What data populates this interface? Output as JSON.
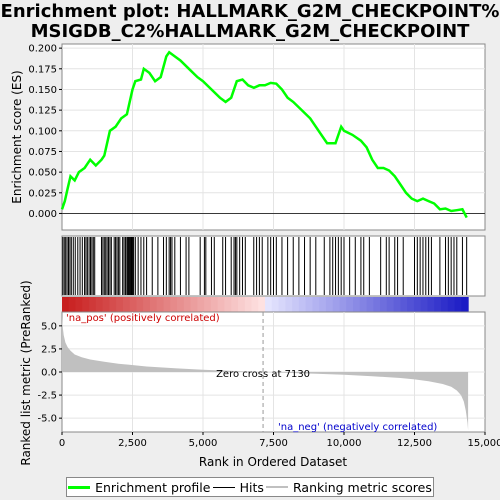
{
  "title_line1": "Enrichment plot: HALLMARK_G2M_CHECKPOINT%",
  "title_line2": "MSIGDB_C2%HALLMARK_G2M_CHECKPOINT",
  "chart_data": [
    {
      "type": "line",
      "panel": "enrichment",
      "ylabel": "Enrichment score (ES)",
      "ylim": [
        -0.02,
        0.205
      ],
      "yticks": [
        0.0,
        0.025,
        0.05,
        0.075,
        0.1,
        0.125,
        0.15,
        0.175,
        0.2
      ],
      "ytick_labels": [
        "0.000",
        "0.025",
        "0.050",
        "0.075",
        "0.100",
        "0.125",
        "0.150",
        "0.175",
        "0.200"
      ],
      "xlim": [
        0,
        15000
      ],
      "grid": true,
      "color": "#00ff00",
      "series": [
        {
          "name": "Enrichment profile",
          "x": [
            0,
            100,
            200,
            300,
            450,
            600,
            800,
            1000,
            1200,
            1400,
            1500,
            1700,
            1900,
            2100,
            2300,
            2500,
            2600,
            2800,
            2900,
            3100,
            3300,
            3500,
            3700,
            3800,
            4000,
            4200,
            4500,
            4800,
            5000,
            5300,
            5600,
            5800,
            6000,
            6200,
            6400,
            6600,
            6800,
            7000,
            7200,
            7400,
            7600,
            7800,
            8000,
            8200,
            8500,
            8800,
            9100,
            9400,
            9700,
            9900,
            10000,
            10300,
            10600,
            10800,
            11000,
            11200,
            11400,
            11600,
            11800,
            12000,
            12200,
            12400,
            12600,
            12800,
            13000,
            13200,
            13400,
            13600,
            13800,
            14000,
            14200,
            14350
          ],
          "y": [
            0.005,
            0.015,
            0.03,
            0.045,
            0.04,
            0.05,
            0.055,
            0.065,
            0.058,
            0.065,
            0.07,
            0.1,
            0.105,
            0.115,
            0.12,
            0.15,
            0.16,
            0.162,
            0.175,
            0.17,
            0.16,
            0.165,
            0.19,
            0.195,
            0.19,
            0.185,
            0.175,
            0.165,
            0.16,
            0.15,
            0.14,
            0.135,
            0.14,
            0.16,
            0.162,
            0.155,
            0.152,
            0.155,
            0.155,
            0.158,
            0.157,
            0.15,
            0.14,
            0.135,
            0.125,
            0.115,
            0.1,
            0.085,
            0.085,
            0.105,
            0.1,
            0.095,
            0.088,
            0.08,
            0.065,
            0.055,
            0.055,
            0.052,
            0.045,
            0.035,
            0.025,
            0.018,
            0.015,
            0.018,
            0.015,
            0.012,
            0.005,
            0.006,
            0.003,
            0.004,
            0.005,
            -0.005
          ]
        }
      ]
    },
    {
      "type": "scatter",
      "panel": "hits",
      "series": [
        {
          "name": "Hits",
          "x": [
            30,
            80,
            130,
            180,
            230,
            280,
            330,
            400,
            470,
            560,
            640,
            720,
            800,
            850,
            900,
            960,
            1010,
            1060,
            1110,
            1160,
            1400,
            1450,
            1500,
            1550,
            1600,
            1650,
            1700,
            1750,
            1850,
            1900,
            1950,
            2000,
            2050,
            2150,
            2200,
            2250,
            2300,
            2330,
            2360,
            2390,
            2420,
            2450,
            2480,
            2510,
            2540,
            2600,
            2700,
            2800,
            2900,
            3000,
            3200,
            3400,
            3600,
            3700,
            3800,
            3850,
            3900,
            4000,
            4200,
            4400,
            4500,
            4900,
            5050,
            5100,
            5300,
            5400,
            5700,
            5800,
            6000,
            6100,
            6150,
            6200,
            6300,
            6400,
            6500,
            6800,
            6900,
            7000,
            7100,
            7300,
            7400,
            7500,
            7600,
            7800,
            8000,
            8200,
            8400,
            8600,
            8800,
            9000,
            9300,
            9500,
            9600,
            9700,
            9800,
            9900,
            10000,
            10200,
            10400,
            10600,
            10700,
            10900,
            11300,
            11500,
            11600,
            11800,
            11900,
            12100,
            12500,
            12600,
            12700,
            12800,
            12900,
            13000,
            13100,
            13400,
            13600,
            13700,
            13800,
            13900,
            14000,
            14200,
            14350
          ]
        }
      ]
    },
    {
      "type": "area",
      "panel": "ranked_metric",
      "ylabel": "Ranked list metric (PreRanked)",
      "xlabel": "Rank in Ordered Dataset",
      "ylim": [
        -6.5,
        6.5
      ],
      "yticks": [
        -5.0,
        -2.5,
        0.0,
        2.5,
        5.0
      ],
      "ytick_labels": [
        "-5.0",
        "-2.5",
        "0.0",
        "2.5",
        "5.0"
      ],
      "xlim": [
        0,
        15000
      ],
      "xticks": [
        0,
        2500,
        5000,
        7500,
        10000,
        12500,
        15000
      ],
      "xtick_labels": [
        "0",
        "2,500",
        "5,000",
        "7,500",
        "10,000",
        "12,500",
        "15,000"
      ],
      "grid": true,
      "color": "#c0c0c0",
      "series": [
        {
          "name": "Ranking metric scores",
          "x": [
            0,
            20,
            60,
            120,
            200,
            300,
            450,
            700,
            1000,
            1500,
            2000,
            3000,
            4000,
            5000,
            6000,
            7130,
            8000,
            9000,
            10000,
            11000,
            12000,
            12500,
            13000,
            13500,
            13800,
            14000,
            14150,
            14250,
            14320,
            14380,
            14400
          ],
          "y": [
            6.0,
            5.0,
            4.0,
            3.2,
            2.7,
            2.3,
            1.9,
            1.6,
            1.35,
            1.1,
            0.9,
            0.6,
            0.4,
            0.25,
            0.12,
            0.0,
            -0.1,
            -0.2,
            -0.3,
            -0.45,
            -0.65,
            -0.8,
            -1.0,
            -1.3,
            -1.6,
            -2.0,
            -2.5,
            -3.2,
            -4.2,
            -5.5,
            -6.3
          ]
        }
      ],
      "annotations": {
        "zero_cross_text": "Zero cross at 7130",
        "zero_cross_x": 7130,
        "pos_label": "'na_pos' (positively correlated)",
        "neg_label": "'na_neg' (negatively correlated)",
        "pos_color": "#cc0000",
        "neg_color": "#0000cc"
      }
    }
  ],
  "legend": {
    "items": [
      {
        "label": "Enrichment profile",
        "color": "#00ff00"
      },
      {
        "label": "Hits",
        "color": "#000000"
      },
      {
        "label": "Ranking metric scores",
        "color": "#c0c0c0"
      }
    ]
  }
}
